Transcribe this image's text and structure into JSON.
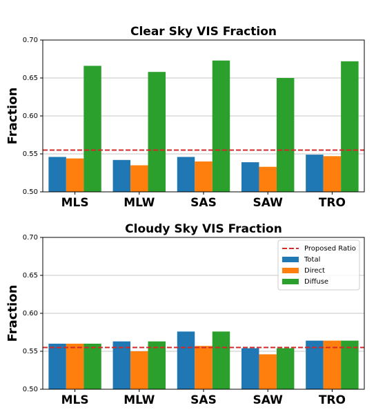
{
  "chart_data": [
    {
      "type": "bar",
      "title": "Clear Sky VIS Fraction",
      "ylabel": "Fraction",
      "categories": [
        "MLS",
        "MLW",
        "SAS",
        "SAW",
        "TRO"
      ],
      "series": [
        {
          "name": "Total",
          "color": "#1f77b4",
          "values": [
            0.546,
            0.542,
            0.546,
            0.539,
            0.549
          ]
        },
        {
          "name": "Direct",
          "color": "#ff7f0e",
          "values": [
            0.544,
            0.535,
            0.54,
            0.533,
            0.547
          ]
        },
        {
          "name": "Diffuse",
          "color": "#2ca02c",
          "values": [
            0.666,
            0.658,
            0.673,
            0.65,
            0.672
          ]
        }
      ],
      "ylim": [
        0.5,
        0.7
      ],
      "yticks": [
        {
          "value": 0.5,
          "label": "0.50"
        },
        {
          "value": 0.55,
          "label": "0.55"
        },
        {
          "value": 0.6,
          "label": "0.60"
        },
        {
          "value": 0.65,
          "label": "0.65"
        },
        {
          "value": 0.7,
          "label": "0.70"
        }
      ],
      "grid": true,
      "reference_line": {
        "value": 0.555,
        "color": "#d62728",
        "style": "dashed"
      },
      "legend": false
    },
    {
      "type": "bar",
      "title": "Cloudy Sky VIS Fraction",
      "ylabel": "Fraction",
      "categories": [
        "MLS",
        "MLW",
        "SAS",
        "SAW",
        "TRO"
      ],
      "series": [
        {
          "name": "Total",
          "color": "#1f77b4",
          "values": [
            0.56,
            0.563,
            0.576,
            0.554,
            0.564
          ]
        },
        {
          "name": "Direct",
          "color": "#ff7f0e",
          "values": [
            0.56,
            0.55,
            0.557,
            0.546,
            0.564
          ]
        },
        {
          "name": "Diffuse",
          "color": "#2ca02c",
          "values": [
            0.56,
            0.563,
            0.576,
            0.554,
            0.564
          ]
        }
      ],
      "ylim": [
        0.5,
        0.7
      ],
      "yticks": [
        {
          "value": 0.5,
          "label": "0.50"
        },
        {
          "value": 0.55,
          "label": "0.55"
        },
        {
          "value": 0.6,
          "label": "0.60"
        },
        {
          "value": 0.65,
          "label": "0.65"
        },
        {
          "value": 0.7,
          "label": "0.70"
        }
      ],
      "grid": true,
      "reference_line": {
        "name": "Proposed Ratio",
        "value": 0.555,
        "color": "#d62728",
        "style": "dashed"
      },
      "legend": "upper right"
    }
  ]
}
